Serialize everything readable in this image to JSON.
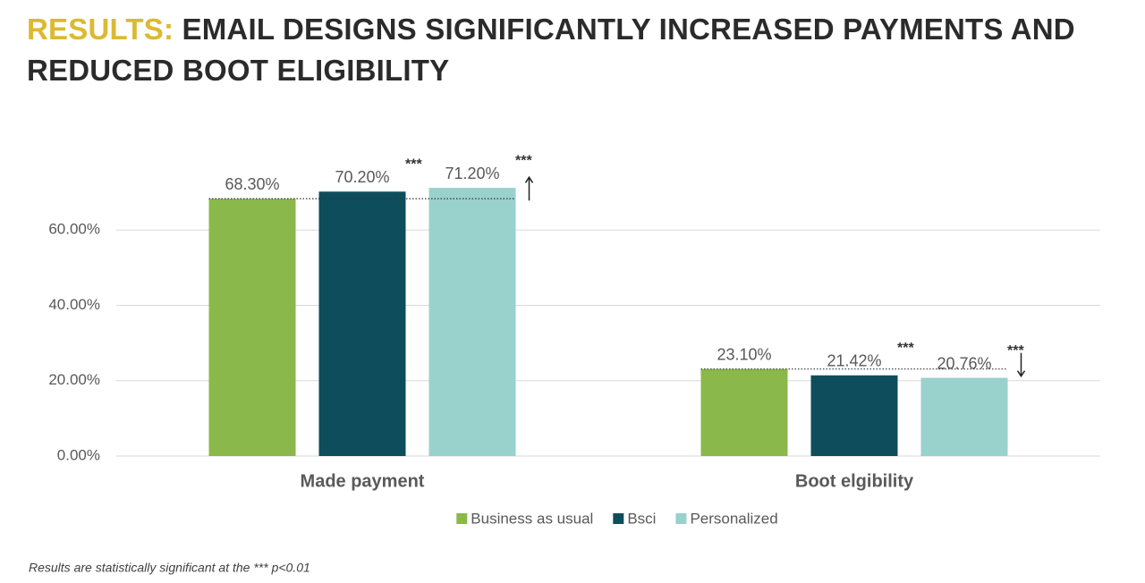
{
  "chart_data": {
    "type": "bar",
    "title_prefix": "RESULTS:",
    "title": "EMAIL DESIGNS SIGNIFICANTLY INCREASED PAYMENTS AND REDUCED BOOT ELIGIBILITY",
    "categories": [
      "Made payment",
      "Boot elgibility"
    ],
    "series": [
      {
        "name": "Business as usual",
        "color": "#8ab84a",
        "values": [
          68.3,
          23.1
        ],
        "value_labels": [
          "68.30%",
          "23.10%"
        ]
      },
      {
        "name": "Bsci",
        "color": "#0e4d5c",
        "values": [
          70.2,
          21.42
        ],
        "value_labels": [
          "70.20%",
          "21.42%"
        ],
        "significance_marker": "***"
      },
      {
        "name": "Personalized",
        "color": "#99d1cd",
        "values": [
          71.2,
          20.76
        ],
        "value_labels": [
          "71.20%",
          "20.76%"
        ],
        "significance_marker": "***"
      }
    ],
    "ylim": [
      0,
      80
    ],
    "yticks": [
      {
        "value": 0,
        "label": "0.00%"
      },
      {
        "value": 20,
        "label": "20.00%"
      },
      {
        "value": 40,
        "label": "40.00%"
      },
      {
        "value": 60,
        "label": "60.00%"
      }
    ],
    "grid": true,
    "legend": "bottom",
    "footnote": "Results are statistically significant at the *** p<0.01"
  }
}
